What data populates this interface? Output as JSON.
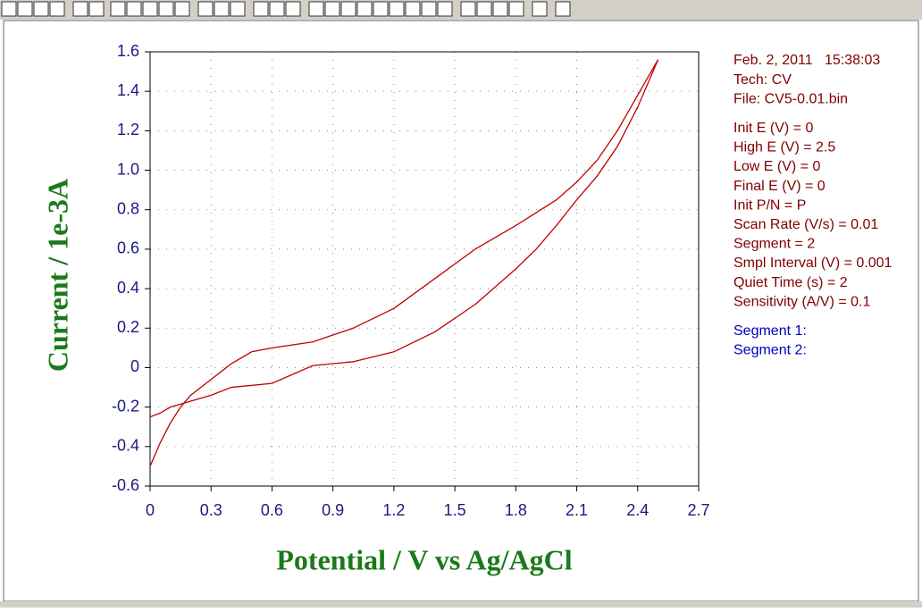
{
  "chart_data": {
    "type": "line",
    "xlabel": "Potential / V vs Ag/AgCl",
    "ylabel": "Current / 1e-3A",
    "xlim": [
      0,
      2.7
    ],
    "ylim": [
      -0.6,
      1.6
    ],
    "xticks": [
      0,
      0.3,
      0.6,
      0.9,
      1.2,
      1.5,
      1.8,
      2.1,
      2.4,
      2.7
    ],
    "yticks": [
      -0.6,
      -0.4,
      -0.2,
      0,
      0.2,
      0.4,
      0.6,
      0.8,
      {
        "value": 1,
        "label": "1.0"
      },
      1.2,
      1.4,
      1.6
    ],
    "grid": true,
    "series": [
      {
        "name": "Segment 1:",
        "color": "#c00000",
        "x": [
          0,
          0.05,
          0.1,
          0.15,
          0.2,
          0.3,
          0.4,
          0.5,
          0.6,
          0.8,
          1.0,
          1.2,
          1.4,
          1.6,
          1.8,
          2.0,
          2.1,
          2.2,
          2.3,
          2.4,
          2.5
        ],
        "values": [
          -0.5,
          -0.38,
          -0.28,
          -0.2,
          -0.14,
          -0.06,
          0.02,
          0.08,
          0.1,
          0.13,
          0.2,
          0.3,
          0.45,
          0.6,
          0.72,
          0.85,
          0.94,
          1.05,
          1.2,
          1.38,
          1.56
        ]
      },
      {
        "name": "Segment 2:",
        "color": "#c00000",
        "x": [
          2.5,
          2.4,
          2.3,
          2.2,
          2.1,
          2.0,
          1.9,
          1.8,
          1.6,
          1.4,
          1.2,
          1.0,
          0.8,
          0.6,
          0.4,
          0.3,
          0.2,
          0.1,
          0.05,
          0
        ],
        "values": [
          1.56,
          1.32,
          1.12,
          0.97,
          0.85,
          0.72,
          0.6,
          0.5,
          0.32,
          0.18,
          0.08,
          0.03,
          0.01,
          -0.08,
          -0.1,
          -0.14,
          -0.17,
          -0.2,
          -0.23,
          -0.25
        ]
      }
    ]
  },
  "info": [
    [
      "Feb. 2, 2011   15:38:03",
      "Tech: CV",
      "File: CV5-0.01.bin"
    ],
    [
      "Init E (V) = 0",
      "High E (V) = 2.5",
      "Low E (V) = 0",
      "Final E (V) = 0",
      "Init P/N = P",
      "Scan Rate (V/s) = 0.01",
      "Segment = 2",
      "Smpl Interval (V) = 0.001",
      "Quiet Time (s) = 2",
      "Sensitivity (A/V) = 0.1"
    ]
  ]
}
